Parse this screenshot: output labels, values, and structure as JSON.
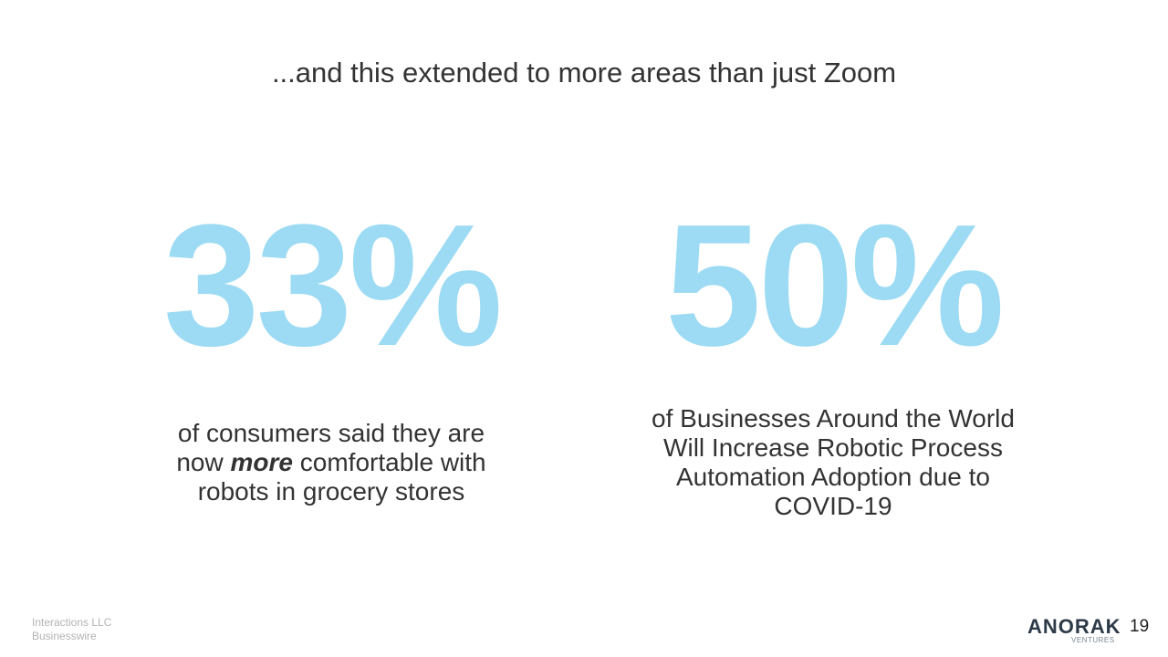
{
  "slide": {
    "title": "...and this extended to more areas than just Zoom",
    "stats": [
      {
        "value": "33%",
        "desc_before": "of consumers said they are now ",
        "desc_emphasis": "more",
        "desc_after": " comfortable with robots in grocery stores"
      },
      {
        "value": "50%",
        "desc": "of Businesses Around the World Will Increase Robotic Process Automation Adoption due to COVID-19"
      }
    ],
    "sources": [
      "Interactions LLC",
      "Businesswire"
    ],
    "logo": {
      "word": "ANORAK",
      "sub": "VENTURES"
    },
    "page_number": "19"
  },
  "colors": {
    "stat": "#9cdbf3",
    "text": "#333333",
    "source": "#b3b3b3",
    "logo": "#2d3a48"
  }
}
